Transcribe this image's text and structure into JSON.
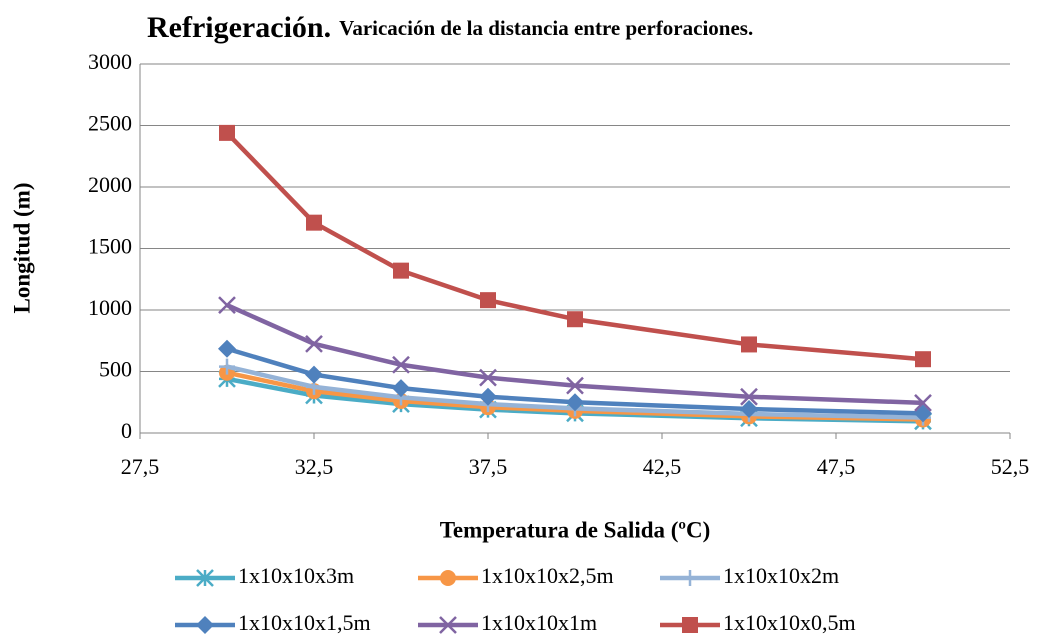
{
  "chart_data": {
    "type": "line",
    "title": "Refrigeración.",
    "subtitle": "Varicación de la distancia entre perforaciones.",
    "x_label": "Temperatura de Salida (ºC)",
    "y_label": "Longitud (m)",
    "x": [
      30,
      32.5,
      35,
      37.5,
      40,
      45,
      50
    ],
    "xlim": [
      27.5,
      52.5
    ],
    "xticks": [
      {
        "value": 27.5,
        "label": "27,5"
      },
      {
        "value": 32.5,
        "label": "32,5"
      },
      {
        "value": 37.5,
        "label": "37,5"
      },
      {
        "value": 42.5,
        "label": "42,5"
      },
      {
        "value": 47.5,
        "label": "47,5"
      },
      {
        "value": 52.5,
        "label": "52,5"
      }
    ],
    "ylim": [
      0,
      3000
    ],
    "yticks": [
      0,
      500,
      1000,
      1500,
      2000,
      2500,
      3000
    ],
    "grid": true,
    "legend": "bottom",
    "series": [
      {
        "name": "1x10x10x3m",
        "color": "#4bacc6",
        "marker": "asterisk",
        "values": [
          440,
          305,
          235,
          190,
          160,
          120,
          95
        ]
      },
      {
        "name": "1x10x10x2,5m",
        "color": "#f79646",
        "marker": "circle",
        "values": [
          490,
          340,
          260,
          210,
          180,
          135,
          110
        ]
      },
      {
        "name": "1x10x10x2m",
        "color": "#95b3d7",
        "marker": "plus",
        "values": [
          540,
          375,
          290,
          235,
          200,
          155,
          125
        ]
      },
      {
        "name": "1x10x10x1,5m",
        "color": "#4f81bd",
        "marker": "diamond",
        "values": [
          685,
          475,
          365,
          295,
          250,
          195,
          160
        ]
      },
      {
        "name": "1x10x10x1m",
        "color": "#8064a2",
        "marker": "x",
        "values": [
          1040,
          725,
          555,
          450,
          385,
          295,
          245
        ]
      },
      {
        "name": "1x10x10x0,5m",
        "color": "#c0504d",
        "marker": "square",
        "values": [
          2440,
          1710,
          1320,
          1080,
          925,
          720,
          600
        ]
      }
    ]
  }
}
